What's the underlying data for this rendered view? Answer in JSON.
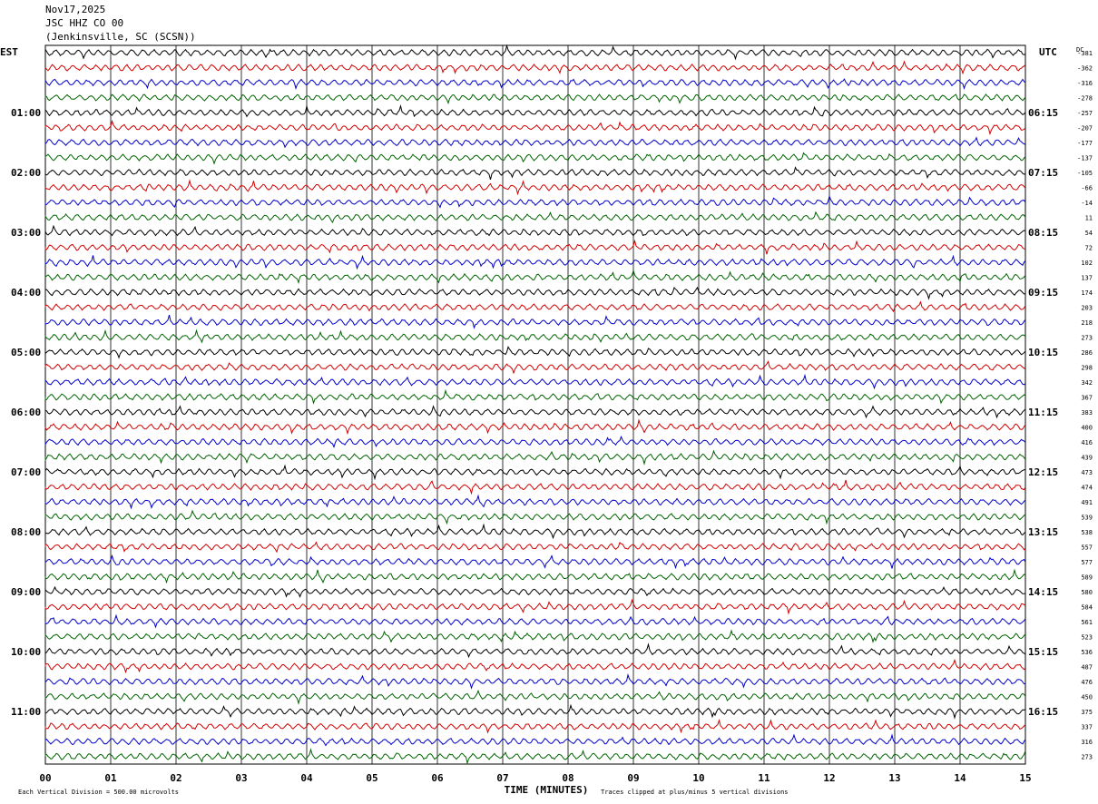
{
  "header": {
    "date": "Nov17,2025",
    "station": "JSC HHZ CO 00",
    "location": "(Jenkinsville, SC (SCSN))"
  },
  "chart_data": {
    "type": "line",
    "subtype": "helicorder",
    "left_timezone": "EST",
    "right_timezone": "UTC",
    "dc_label": "DC",
    "xlabel": "TIME (MINUTES)",
    "xlim": [
      0,
      15
    ],
    "x_ticks": [
      "00",
      "01",
      "02",
      "03",
      "04",
      "05",
      "06",
      "07",
      "08",
      "09",
      "10",
      "11",
      "12",
      "13",
      "14",
      "15"
    ],
    "left_hour_labels": [
      "01:00",
      "02:00",
      "03:00",
      "04:00",
      "05:00",
      "06:00",
      "07:00",
      "08:00",
      "09:00",
      "10:00",
      "11:00"
    ],
    "right_hour_labels": [
      "06:15",
      "07:15",
      "08:15",
      "09:15",
      "10:15",
      "11:15",
      "12:15",
      "13:15",
      "14:15",
      "15:15",
      "16:15"
    ],
    "dc_offsets": [
      -381,
      -362,
      -316,
      -278,
      -257,
      -207,
      -177,
      -137,
      -105,
      -66,
      -14,
      11,
      54,
      72,
      102,
      137,
      174,
      203,
      218,
      273,
      286,
      298,
      342,
      367,
      383,
      400,
      416,
      439,
      473,
      474,
      491,
      539,
      538,
      557,
      577,
      589,
      580,
      584,
      561,
      523,
      536,
      487,
      476,
      450,
      375,
      337,
      316,
      273
    ],
    "trace_colors": [
      "#000000",
      "#d40000",
      "#0000cc",
      "#006400"
    ],
    "grid": true,
    "footer_left": "Each Vertical Division =  500.00 microvolts",
    "footer_right": "Traces clipped at plus/minus 5 vertical divisions"
  }
}
